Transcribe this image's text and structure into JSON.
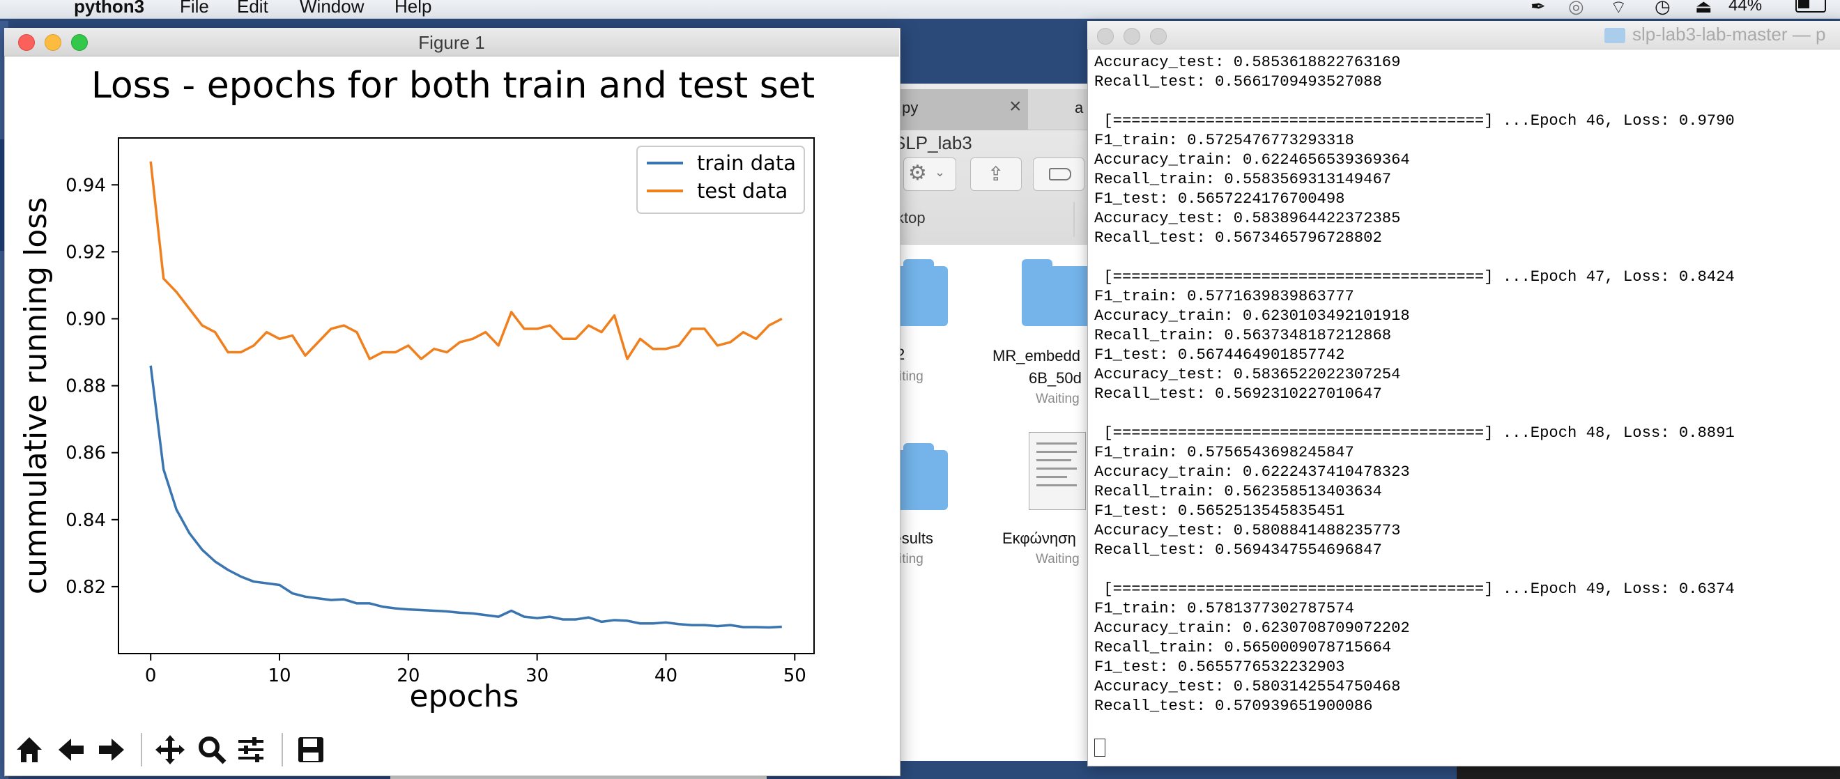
{
  "menubar": {
    "app_name": "python3",
    "items": [
      "File",
      "Edit",
      "Window",
      "Help"
    ],
    "battery": "44%"
  },
  "finder": {
    "tab1_label": ".py",
    "tab2_label": "a",
    "path_label": "SLP_lab3",
    "sidebar_label": "ktop",
    "items": [
      {
        "name": "2",
        "status": "iting"
      },
      {
        "name": "MR_embedd",
        "name2": "6B_50d",
        "status": "Waiting"
      },
      {
        "name": "_results",
        "status": "iting"
      },
      {
        "name": "Εκφώνηση",
        "status": "Waiting"
      }
    ]
  },
  "figure": {
    "window_title": "Figure 1",
    "toolbar": [
      "home-icon",
      "back-icon",
      "forward-icon",
      "pan-icon",
      "zoom-icon",
      "configure-subplots-icon",
      "save-icon"
    ]
  },
  "chart_data": {
    "type": "line",
    "title": "Loss - epochs for both train and test set",
    "xlabel": "epochs",
    "ylabel": "cummulative running loss",
    "xlim": [
      -2.5,
      51.5
    ],
    "ylim": [
      0.8,
      0.954
    ],
    "xticks": [
      0,
      10,
      20,
      30,
      40,
      50
    ],
    "yticks": [
      0.82,
      0.84,
      0.86,
      0.88,
      0.9,
      0.92,
      0.94
    ],
    "legend_position": "top-right",
    "grid": false,
    "series": [
      {
        "name": "train data",
        "color": "#3a75b0",
        "x": [
          0,
          1,
          2,
          3,
          4,
          5,
          6,
          7,
          8,
          9,
          10,
          11,
          12,
          13,
          14,
          15,
          16,
          17,
          18,
          19,
          20,
          21,
          22,
          23,
          24,
          25,
          26,
          27,
          28,
          29,
          30,
          31,
          32,
          33,
          34,
          35,
          36,
          37,
          38,
          39,
          40,
          41,
          42,
          43,
          44,
          45,
          46,
          47,
          48,
          49
        ],
        "values": [
          0.886,
          0.855,
          0.843,
          0.836,
          0.831,
          0.8275,
          0.825,
          0.823,
          0.8215,
          0.821,
          0.8205,
          0.818,
          0.817,
          0.8165,
          0.816,
          0.8162,
          0.815,
          0.815,
          0.814,
          0.8135,
          0.8132,
          0.813,
          0.8128,
          0.8126,
          0.8122,
          0.812,
          0.8115,
          0.811,
          0.8128,
          0.811,
          0.8106,
          0.811,
          0.8102,
          0.8102,
          0.8108,
          0.8095,
          0.81,
          0.8098,
          0.809,
          0.809,
          0.8093,
          0.8088,
          0.8085,
          0.8085,
          0.8082,
          0.8085,
          0.8079,
          0.8079,
          0.8078,
          0.808
        ]
      },
      {
        "name": "test data",
        "color": "#f07f1e",
        "x": [
          0,
          1,
          2,
          3,
          4,
          5,
          6,
          7,
          8,
          9,
          10,
          11,
          12,
          13,
          14,
          15,
          16,
          17,
          18,
          19,
          20,
          21,
          22,
          23,
          24,
          25,
          26,
          27,
          28,
          29,
          30,
          31,
          32,
          33,
          34,
          35,
          36,
          37,
          38,
          39,
          40,
          41,
          42,
          43,
          44,
          45,
          46,
          47,
          48,
          49
        ],
        "values": [
          0.947,
          0.912,
          0.908,
          0.903,
          0.898,
          0.896,
          0.89,
          0.89,
          0.892,
          0.896,
          0.894,
          0.895,
          0.889,
          0.893,
          0.897,
          0.898,
          0.896,
          0.888,
          0.89,
          0.89,
          0.892,
          0.888,
          0.891,
          0.89,
          0.893,
          0.894,
          0.896,
          0.892,
          0.902,
          0.897,
          0.897,
          0.898,
          0.894,
          0.894,
          0.898,
          0.896,
          0.901,
          0.888,
          0.894,
          0.891,
          0.891,
          0.892,
          0.897,
          0.897,
          0.892,
          0.893,
          0.896,
          0.894,
          0.898,
          0.9
        ]
      }
    ]
  },
  "terminal": {
    "title": "slp-lab3-lab-master — p",
    "lines": [
      "Accuracy_test: 0.5853618822763169",
      "Recall_test: 0.5661709493527088",
      "",
      " [========================================] ...Epoch 46, Loss: 0.9790",
      "F1_train: 0.5725476773293318",
      "Accuracy_train: 0.6224656539369364",
      "Recall_train: 0.5583569313149467",
      "F1_test: 0.5657224176700498",
      "Accuracy_test: 0.5838964422372385",
      "Recall_test: 0.5673465796728802",
      "",
      " [========================================] ...Epoch 47, Loss: 0.8424",
      "F1_train: 0.5771639839863777",
      "Accuracy_train: 0.6230103492101918",
      "Recall_train: 0.5637348187212868",
      "F1_test: 0.5674464901857742",
      "Accuracy_test: 0.5836522022307254",
      "Recall_test: 0.5692310227010647",
      "",
      " [========================================] ...Epoch 48, Loss: 0.8891",
      "F1_train: 0.5756543698245847",
      "Accuracy_train: 0.6222437410478323",
      "Recall_train: 0.562358513403634",
      "F1_test: 0.5652513545835451",
      "Accuracy_test: 0.5808841488235773",
      "Recall_test: 0.5694347554696847",
      "",
      " [========================================] ...Epoch 49, Loss: 0.6374",
      "F1_train: 0.5781377302787574",
      "Accuracy_train: 0.6230708709072202",
      "Recall_train: 0.5650009078715664",
      "F1_test: 0.5655776532232903",
      "Accuracy_test: 0.5803142554750468",
      "Recall_test: 0.570939651900086"
    ]
  }
}
